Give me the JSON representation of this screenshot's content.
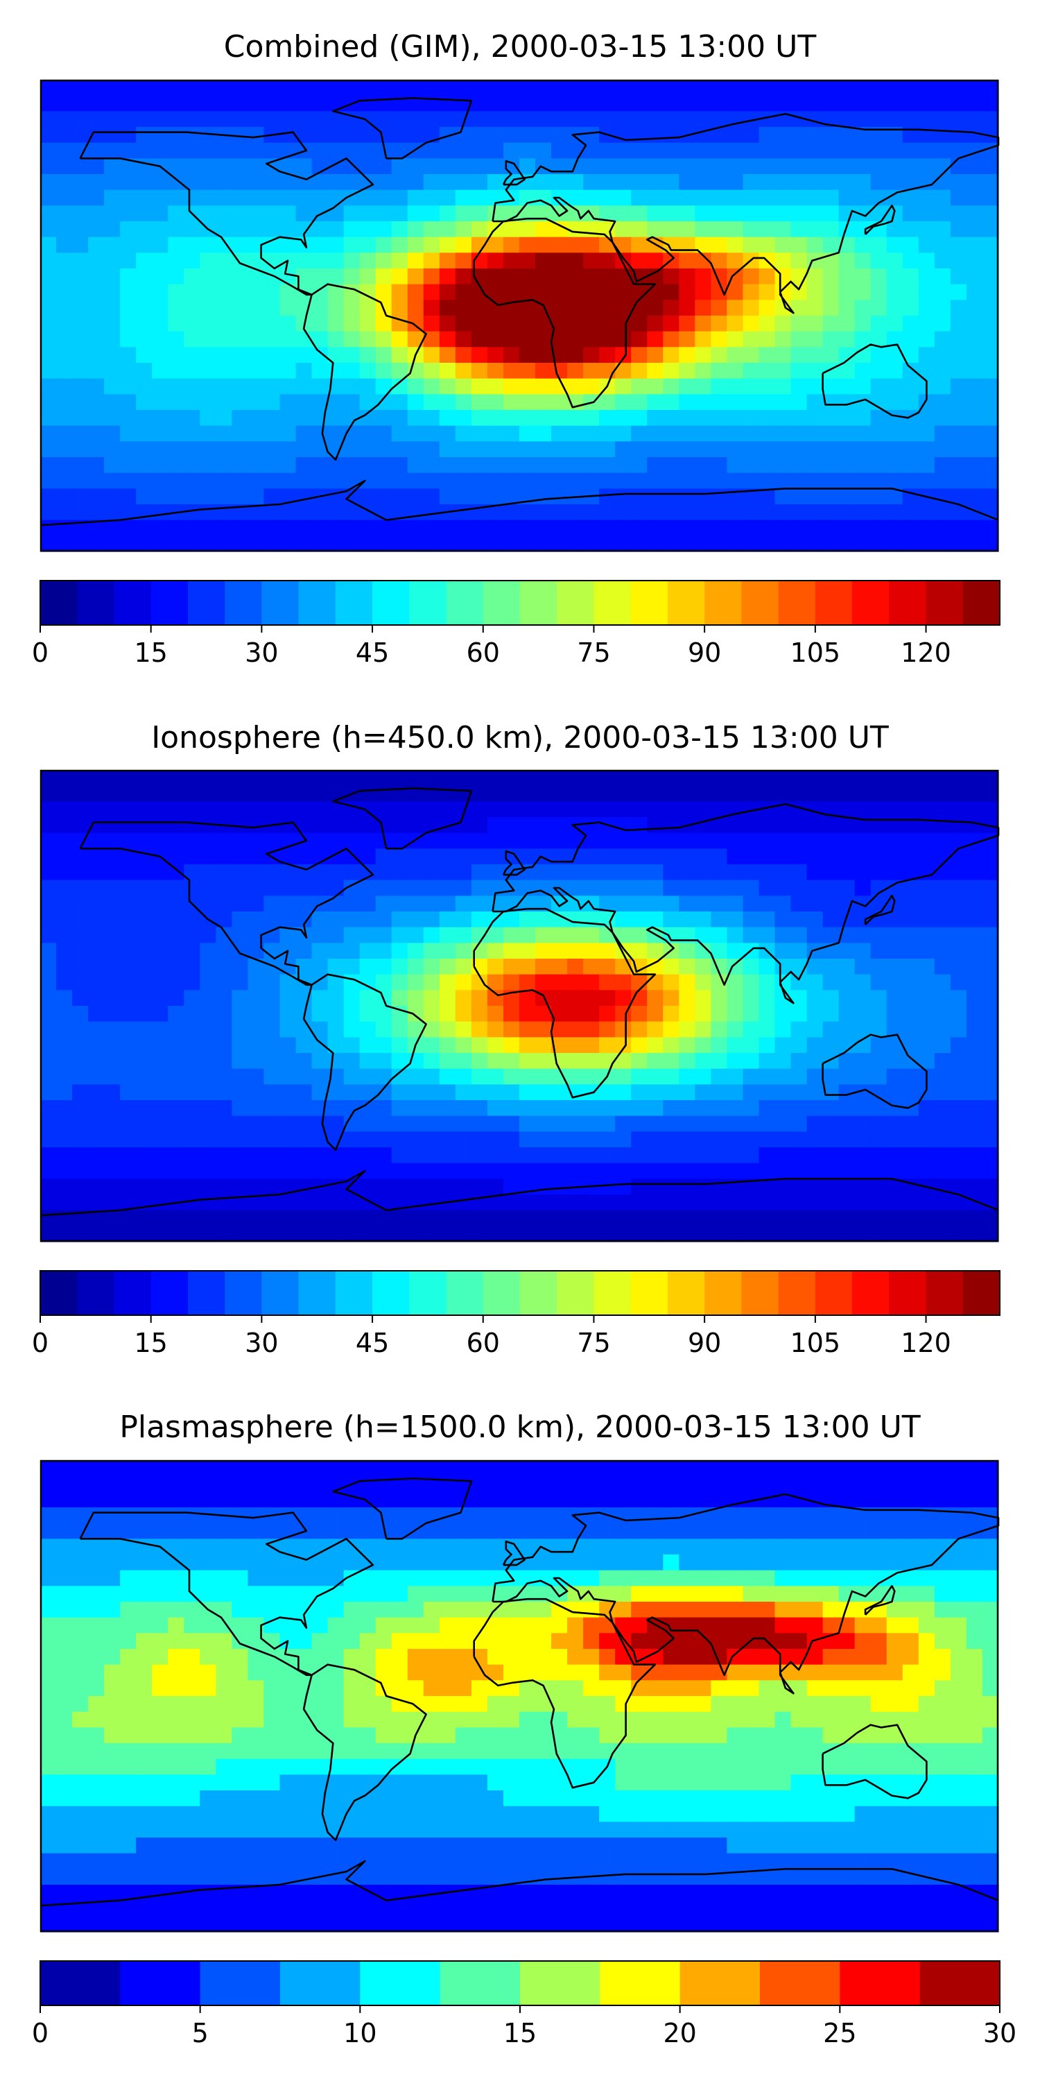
{
  "panels": [
    {
      "title": "Combined (GIM), 2000-03-15 13:00 UT",
      "map_kind": "combined",
      "colorbar": {
        "min": 0,
        "max": 130,
        "levels": [
          0,
          5,
          10,
          15,
          20,
          25,
          30,
          35,
          40,
          45,
          50,
          55,
          60,
          65,
          70,
          75,
          80,
          85,
          90,
          95,
          100,
          105,
          110,
          115,
          120,
          125,
          130
        ],
        "tick_values": [
          0,
          15,
          30,
          45,
          60,
          75,
          90,
          105,
          120
        ],
        "tick_labels": [
          "0",
          "15",
          "30",
          "45",
          "60",
          "75",
          "90",
          "105",
          "120"
        ]
      }
    },
    {
      "title": "Ionosphere  (h=450.0 km), 2000-03-15 13:00 UT",
      "map_kind": "ionosphere",
      "colorbar": {
        "min": 0,
        "max": 130,
        "levels": [
          0,
          5,
          10,
          15,
          20,
          25,
          30,
          35,
          40,
          45,
          50,
          55,
          60,
          65,
          70,
          75,
          80,
          85,
          90,
          95,
          100,
          105,
          110,
          115,
          120,
          125,
          130
        ],
        "tick_values": [
          0,
          15,
          30,
          45,
          60,
          75,
          90,
          105,
          120
        ],
        "tick_labels": [
          "0",
          "15",
          "30",
          "45",
          "60",
          "75",
          "90",
          "105",
          "120"
        ]
      }
    },
    {
      "title": "Plasmasphere (h=1500.0 km), 2000-03-15 13:00 UT",
      "map_kind": "plasmasphere",
      "colorbar": {
        "min": 0,
        "max": 30,
        "levels": [
          0,
          2.5,
          5,
          7.5,
          10,
          12.5,
          15,
          17.5,
          20,
          22.5,
          25,
          27.5,
          30
        ],
        "tick_values": [
          0,
          5,
          10,
          15,
          20,
          25,
          30
        ],
        "tick_labels": [
          "0",
          "5",
          "10",
          "15",
          "20",
          "25",
          "30"
        ]
      }
    }
  ],
  "colormap": "jet",
  "projection": "equirectangular",
  "coastlines": true
}
